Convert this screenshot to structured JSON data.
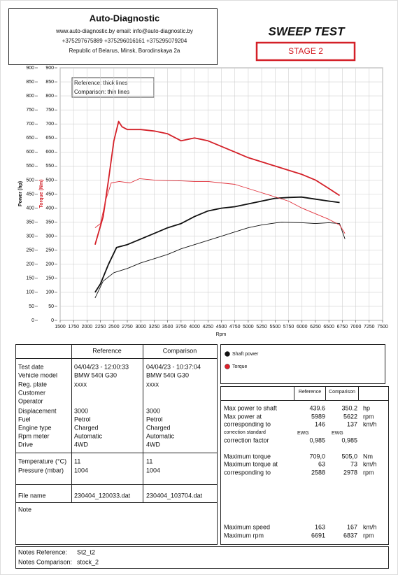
{
  "header": {
    "company": "Auto-Diagnostic",
    "contacts": "www.auto-diagnostic.by     email: info@auto-diagnostic.by",
    "phones": "+375297675889  +375296016161  +375295079204",
    "address": "Republic of Belarus, Minsk, Borodinskaya 2a"
  },
  "title": "SWEEP TEST",
  "stage": "STAGE 2",
  "chart_data": {
    "type": "line",
    "x_label": "Rpm",
    "y_label": "Power (hp)",
    "y2_label": "Torque (Nm)",
    "annotations": [
      "Reference: thick lines",
      "Comparison: thin lines"
    ],
    "xlim": [
      1500,
      7500
    ],
    "xticks": [
      1500,
      1750,
      2000,
      2250,
      2500,
      2750,
      3000,
      3250,
      3500,
      3750,
      4000,
      4250,
      4500,
      4750,
      5000,
      5250,
      5500,
      5750,
      6000,
      6250,
      6500,
      6750,
      7000,
      7250,
      7500
    ],
    "ylim": [
      0,
      900
    ],
    "yticks": [
      0,
      50,
      100,
      150,
      200,
      250,
      300,
      350,
      400,
      450,
      500,
      550,
      600,
      650,
      700,
      750,
      800,
      850,
      900
    ],
    "y2lim": [
      0,
      900
    ],
    "y2ticks": [
      0,
      50,
      100,
      150,
      200,
      250,
      300,
      350,
      400,
      450,
      500,
      550,
      600,
      650,
      700,
      750,
      800,
      850,
      900
    ],
    "grid": true,
    "legend": [
      {
        "name": "Shaft power",
        "color": "#111111"
      },
      {
        "name": "Torque",
        "color": "#e0202a"
      }
    ],
    "series": [
      {
        "color": "#111111",
        "line_width": 1.8,
        "x": [
          2150,
          2250,
          2400,
          2550,
          2750,
          3000,
          3250,
          3500,
          3750,
          4000,
          4250,
          4500,
          4750,
          5000,
          5250,
          5500,
          5750,
          5989,
          6250,
          6500,
          6700
        ],
        "values": [
          100,
          130,
          200,
          260,
          270,
          290,
          310,
          330,
          345,
          370,
          390,
          400,
          405,
          415,
          425,
          435,
          438,
          439.6,
          432,
          425,
          420
        ]
      },
      {
        "color": "#111111",
        "line_width": 0.9,
        "x": [
          2150,
          2300,
          2500,
          2750,
          3000,
          3250,
          3500,
          3750,
          4000,
          4250,
          4500,
          4750,
          5000,
          5250,
          5500,
          5622,
          6000,
          6250,
          6500,
          6700,
          6800
        ],
        "values": [
          80,
          140,
          170,
          185,
          205,
          220,
          235,
          255,
          270,
          285,
          300,
          315,
          330,
          340,
          347,
          350.2,
          348,
          345,
          348,
          345,
          290
        ]
      },
      {
        "color": "#d42028",
        "line_width": 1.8,
        "axis": "y2",
        "x": [
          2150,
          2300,
          2400,
          2500,
          2588,
          2650,
          2750,
          3000,
          3250,
          3500,
          3750,
          4000,
          4250,
          4500,
          4750,
          5000,
          5250,
          5500,
          5750,
          6000,
          6250,
          6500,
          6700
        ],
        "values": [
          270,
          370,
          500,
          640,
          709,
          690,
          680,
          680,
          675,
          665,
          640,
          650,
          640,
          620,
          600,
          580,
          565,
          550,
          535,
          520,
          500,
          470,
          445
        ]
      },
      {
        "color": "#e0303a",
        "line_width": 0.9,
        "axis": "y2",
        "x": [
          2150,
          2250,
          2350,
          2450,
          2600,
          2800,
          2978,
          3250,
          3500,
          3750,
          4000,
          4250,
          4500,
          4750,
          5000,
          5250,
          5500,
          5750,
          6000,
          6250,
          6500,
          6700,
          6800
        ],
        "values": [
          330,
          345,
          430,
          490,
          495,
          490,
          505,
          500,
          498,
          497,
          495,
          495,
          490,
          485,
          470,
          455,
          440,
          425,
          400,
          380,
          360,
          340,
          310
        ]
      }
    ]
  },
  "info_table": {
    "headers": [
      "Reference",
      "Comparison"
    ],
    "rows": [
      {
        "label": "Test date",
        "reference": "04/04/23 - 12:00:33",
        "comparison": "04/04/23 - 10:37:04"
      },
      {
        "label": "Vehicle model",
        "reference": "BMW 540i G30",
        "comparison": "BMW 540i G30"
      },
      {
        "label": "Reg. plate",
        "reference": "xxxx",
        "comparison": "xxxx"
      },
      {
        "label": "Customer"
      },
      {
        "label": "Operator"
      },
      {
        "label": "Displacement",
        "reference": "3000",
        "comparison": "3000"
      },
      {
        "label": "Fuel",
        "reference": "Petrol",
        "comparison": "Petrol"
      },
      {
        "label": "Engine type",
        "reference": "Charged",
        "comparison": "Charged"
      },
      {
        "label": "Rpm meter",
        "reference": "Automatic",
        "comparison": "Automatic"
      },
      {
        "label": "Drive",
        "reference": "4WD",
        "comparison": "4WD"
      },
      {
        "label": "Temperature (°C)",
        "reference": "11",
        "comparison": "11"
      },
      {
        "label": "Pressure (mbar)",
        "reference": "1004",
        "comparison": "1004"
      },
      {
        "label": "File name",
        "reference": "230404_120033.dat",
        "comparison": "230404_103704.dat"
      },
      {
        "label": "Note"
      }
    ]
  },
  "results_table": {
    "headers": [
      "Reference",
      "Comparison"
    ],
    "rows": [
      {
        "label": "Max power to shaft",
        "reference": "439.6",
        "comparison": "350.2",
        "unit": "hp"
      },
      {
        "label": "Max power at",
        "reference": "5989",
        "comparison": "5622",
        "unit": "rpm"
      },
      {
        "label": "corresponding to",
        "reference": "146",
        "comparison": "137",
        "unit": "km/h"
      },
      {
        "label": "correction standard",
        "reference": "EWG",
        "comparison": "EWG"
      },
      {
        "label": "correction factor",
        "reference": "0,985",
        "comparison": "0,985"
      },
      {
        "label": "Maximum torque",
        "reference": "709,0",
        "comparison": "505,0",
        "unit": "Nm"
      },
      {
        "label": "Maximum torque at",
        "reference": "63",
        "comparison": "73",
        "unit": "km/h"
      },
      {
        "label": "corresponding to",
        "reference": "2588",
        "comparison": "2978",
        "unit": "rpm"
      },
      {
        "label": "Maximum speed",
        "reference": "163",
        "comparison": "167",
        "unit": "km/h"
      },
      {
        "label": "Maximum rpm",
        "reference": "6691",
        "comparison": "6837",
        "unit": "rpm"
      }
    ]
  },
  "notes": [
    {
      "label": "Notes Reference:",
      "value": "St2_t2"
    },
    {
      "label": "Notes Comparison:",
      "value": "stock_2"
    }
  ]
}
